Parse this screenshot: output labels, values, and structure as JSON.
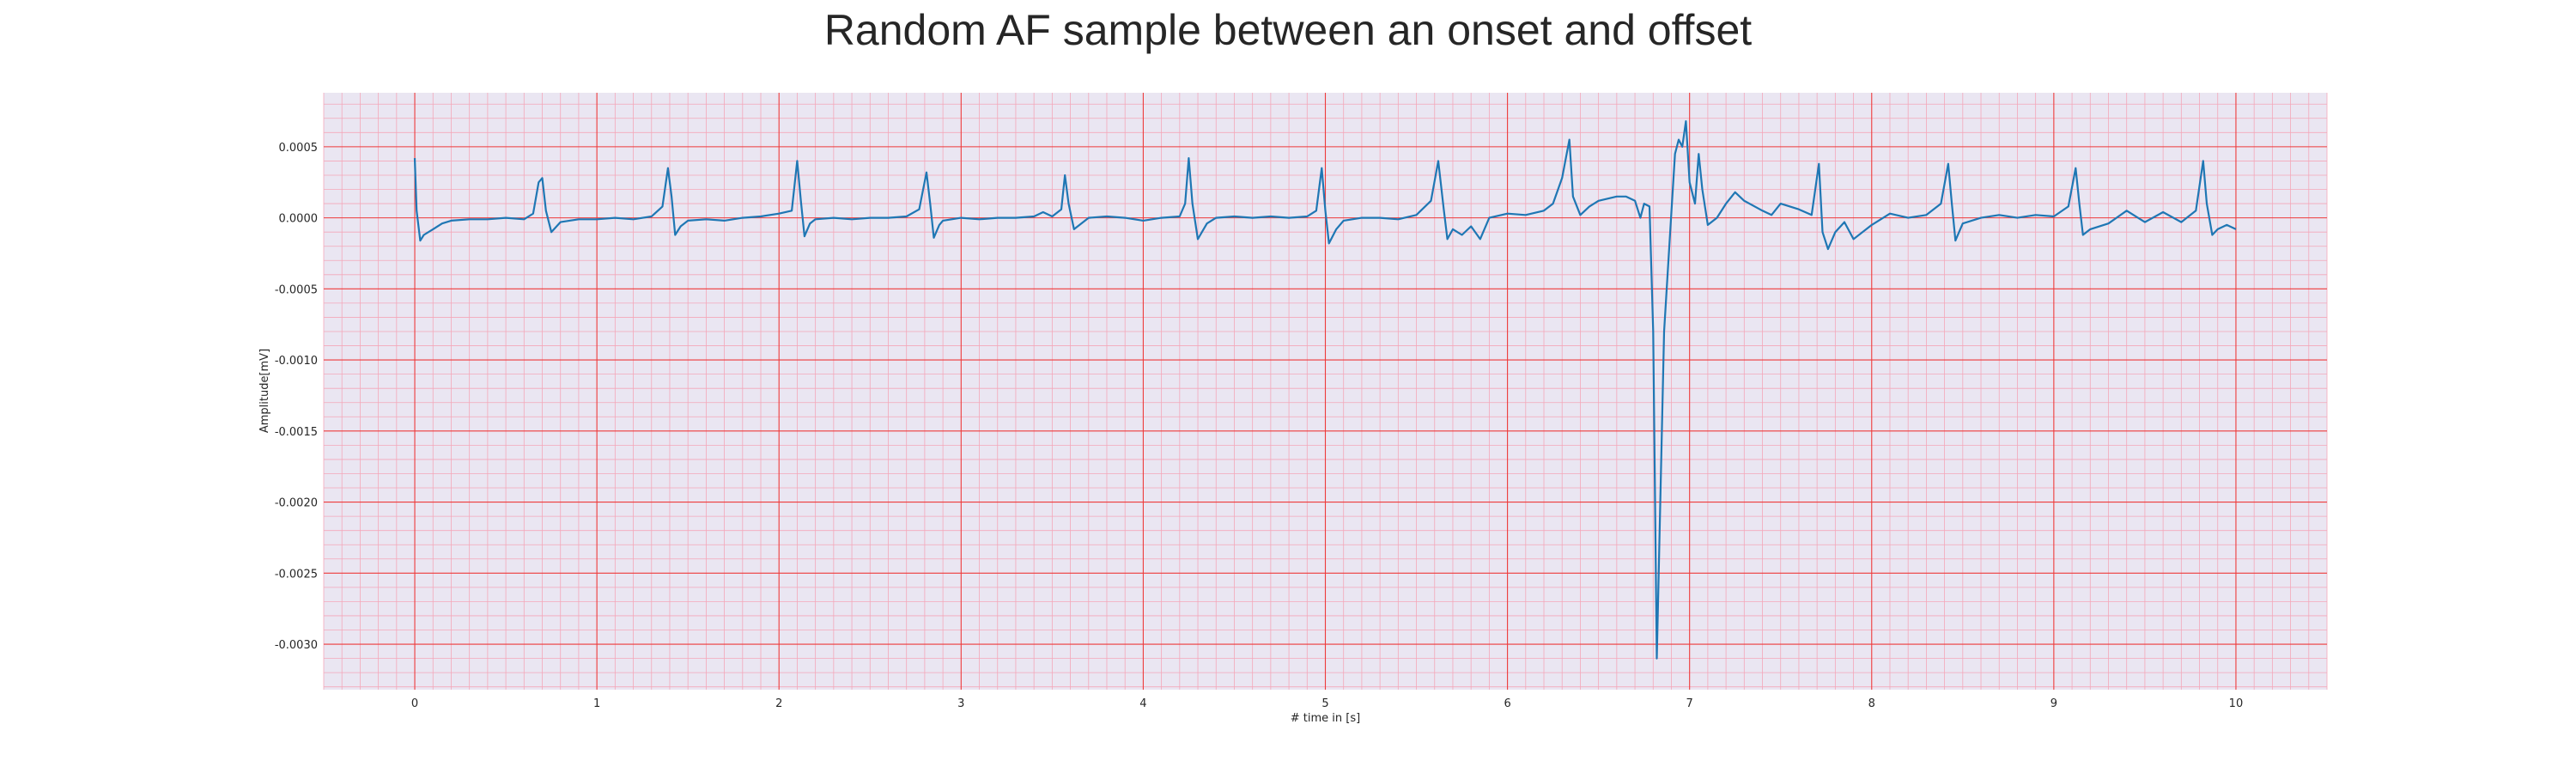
{
  "chart_data": {
    "type": "line",
    "title": "Random AF sample between an onset and offset",
    "xlabel": "# time in [s]",
    "ylabel": "Amplitude[mV]",
    "xlim": [
      -0.5,
      10.5
    ],
    "ylim": [
      -0.00332,
      0.00088
    ],
    "x_ticks": [
      0,
      1,
      2,
      3,
      4,
      5,
      6,
      7,
      8,
      9,
      10
    ],
    "x_tick_labels": [
      "0",
      "1",
      "2",
      "3",
      "4",
      "5",
      "6",
      "7",
      "8",
      "9",
      "10"
    ],
    "y_ticks": [
      0.0005,
      0.0,
      -0.0005,
      -0.001,
      -0.0015,
      -0.002,
      -0.0025,
      -0.003
    ],
    "y_tick_labels": [
      "0.0005",
      "0.0000",
      "-0.0005",
      "-0.0010",
      "-0.0015",
      "-0.0020",
      "-0.0025",
      "-0.0030"
    ],
    "grid": true,
    "minor_grid": true,
    "colors": {
      "background": "#eae6f2",
      "major_grid": "#ee3b3b",
      "minor_grid": "#f4a7b9",
      "line": "#1f77b4"
    },
    "series": [
      {
        "values_note_free": true,
        "x": [
          0.0,
          0.01,
          0.03,
          0.05,
          0.1,
          0.15,
          0.2,
          0.3,
          0.4,
          0.5,
          0.6,
          0.65,
          0.68,
          0.7,
          0.72,
          0.75,
          0.8,
          0.9,
          1.0,
          1.1,
          1.2,
          1.3,
          1.36,
          1.39,
          1.41,
          1.43,
          1.46,
          1.5,
          1.6,
          1.7,
          1.8,
          1.9,
          2.0,
          2.07,
          2.1,
          2.12,
          2.14,
          2.17,
          2.2,
          2.3,
          2.4,
          2.5,
          2.6,
          2.7,
          2.77,
          2.81,
          2.83,
          2.85,
          2.88,
          2.9,
          3.0,
          3.1,
          3.2,
          3.3,
          3.4,
          3.45,
          3.5,
          3.55,
          3.57,
          3.59,
          3.62,
          3.7,
          3.8,
          3.9,
          4.0,
          4.1,
          4.2,
          4.23,
          4.25,
          4.27,
          4.3,
          4.35,
          4.4,
          4.5,
          4.6,
          4.7,
          4.8,
          4.9,
          4.95,
          4.98,
          5.0,
          5.02,
          5.06,
          5.1,
          5.2,
          5.3,
          5.4,
          5.5,
          5.58,
          5.62,
          5.65,
          5.67,
          5.7,
          5.75,
          5.8,
          5.85,
          5.9,
          6.0,
          6.1,
          6.2,
          6.25,
          6.3,
          6.34,
          6.36,
          6.4,
          6.45,
          6.5,
          6.6,
          6.65,
          6.7,
          6.73,
          6.75,
          6.78,
          6.8,
          6.82,
          6.86,
          6.9,
          6.92,
          6.94,
          6.96,
          6.98,
          7.0,
          7.03,
          7.05,
          7.07,
          7.1,
          7.15,
          7.2,
          7.25,
          7.3,
          7.4,
          7.45,
          7.5,
          7.6,
          7.67,
          7.71,
          7.73,
          7.76,
          7.8,
          7.85,
          7.9,
          8.0,
          8.1,
          8.2,
          8.3,
          8.38,
          8.42,
          8.44,
          8.46,
          8.5,
          8.6,
          8.7,
          8.8,
          8.9,
          9.0,
          9.08,
          9.12,
          9.14,
          9.16,
          9.2,
          9.3,
          9.4,
          9.5,
          9.6,
          9.7,
          9.78,
          9.82,
          9.84,
          9.87,
          9.9,
          9.95,
          10.0
        ],
        "y": [
          0.00042,
          5e-05,
          -0.00016,
          -0.00012,
          -8e-05,
          -4e-05,
          -2e-05,
          -1e-05,
          -1e-05,
          0.0,
          -1e-05,
          3e-05,
          0.00025,
          0.00028,
          5e-05,
          -0.0001,
          -3e-05,
          -1e-05,
          -1e-05,
          0.0,
          -1e-05,
          1e-05,
          8e-05,
          0.00035,
          0.00015,
          -0.00012,
          -6e-05,
          -2e-05,
          -1e-05,
          -2e-05,
          0.0,
          1e-05,
          3e-05,
          5e-05,
          0.0004,
          0.00012,
          -0.00013,
          -4e-05,
          -1e-05,
          0.0,
          -1e-05,
          0.0,
          0.0,
          1e-05,
          6e-05,
          0.00032,
          0.0001,
          -0.00014,
          -5e-05,
          -2e-05,
          0.0,
          -1e-05,
          0.0,
          0.0,
          1e-05,
          4e-05,
          1e-05,
          6e-05,
          0.0003,
          0.0001,
          -8e-05,
          0.0,
          1e-05,
          0.0,
          -2e-05,
          0.0,
          1e-05,
          0.0001,
          0.00042,
          0.0001,
          -0.00015,
          -4e-05,
          0.0,
          1e-05,
          0.0,
          1e-05,
          0.0,
          1e-05,
          5e-05,
          0.00035,
          5e-05,
          -0.00018,
          -8e-05,
          -2e-05,
          0.0,
          0.0,
          -1e-05,
          2e-05,
          0.00012,
          0.0004,
          6e-05,
          -0.00015,
          -8e-05,
          -0.00012,
          -6e-05,
          -0.00015,
          0.0,
          3e-05,
          2e-05,
          5e-05,
          0.0001,
          0.00028,
          0.00055,
          0.00015,
          2e-05,
          8e-05,
          0.00012,
          0.00015,
          0.00015,
          0.00012,
          0.0,
          0.0001,
          8e-05,
          -0.0008,
          -0.0031,
          -0.0008,
          4e-05,
          0.00045,
          0.00055,
          0.0005,
          0.00068,
          0.00025,
          0.0001,
          0.00045,
          0.0002,
          -5e-05,
          0.0,
          0.0001,
          0.00018,
          0.00012,
          5e-05,
          2e-05,
          0.0001,
          6e-05,
          2e-05,
          0.00038,
          -0.0001,
          -0.00022,
          -0.0001,
          -3e-05,
          -0.00015,
          -5e-05,
          3e-05,
          0.0,
          2e-05,
          0.0001,
          0.00038,
          0.0001,
          -0.00016,
          -4e-05,
          0.0,
          2e-05,
          0.0,
          2e-05,
          1e-05,
          8e-05,
          0.00035,
          0.0001,
          -0.00012,
          -8e-05,
          -4e-05,
          5e-05,
          -3e-05,
          4e-05,
          -3e-05,
          5e-05,
          0.0004,
          0.0001,
          -0.00012,
          -8e-05,
          -5e-05,
          -8e-05
        ]
      }
    ]
  }
}
